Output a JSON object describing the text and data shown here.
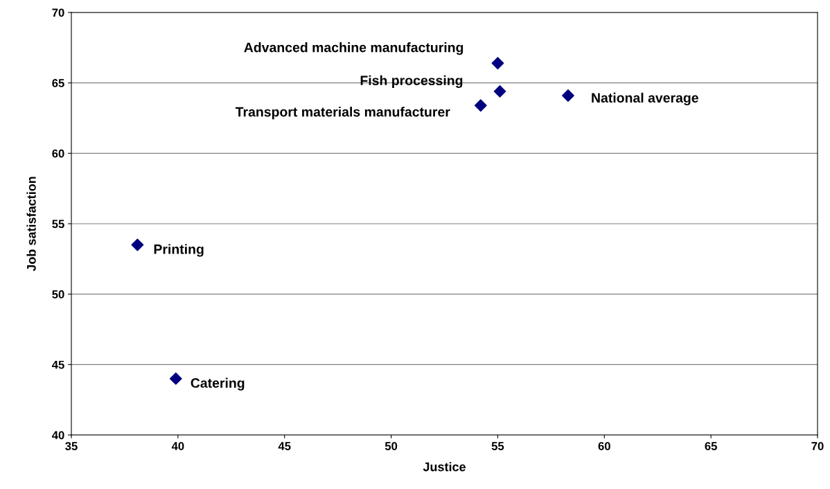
{
  "chart_data": {
    "type": "scatter",
    "xlabel": "Justice",
    "ylabel": "Job satisfaction",
    "x": [
      55.0,
      55.1,
      54.2,
      58.3,
      38.1,
      39.9
    ],
    "series": [
      {
        "color": "#000080",
        "values": [
          66.4,
          64.4,
          63.4,
          64.1,
          53.5,
          44.0
        ]
      }
    ],
    "xlim": [
      35,
      70
    ],
    "xticks": [
      35,
      40,
      45,
      50,
      55,
      60,
      65,
      70
    ],
    "ylim": [
      40,
      70
    ],
    "yticks": [
      40,
      45,
      50,
      55,
      60,
      65,
      70
    ],
    "grid": "y",
    "marker": "diamond",
    "legend": false,
    "annotations": [
      {
        "text": "Advanced machine manufacturing",
        "x": 55.0,
        "y": 66.4
      },
      {
        "text": "Fish processing",
        "x": 55.1,
        "y": 64.4
      },
      {
        "text": "Transport materials manufacturer",
        "x": 54.2,
        "y": 63.4
      },
      {
        "text": "National average",
        "x": 58.3,
        "y": 64.1
      },
      {
        "text": "Printing",
        "x": 38.1,
        "y": 53.5
      },
      {
        "text": "Catering",
        "x": 39.9,
        "y": 44.0
      }
    ]
  }
}
